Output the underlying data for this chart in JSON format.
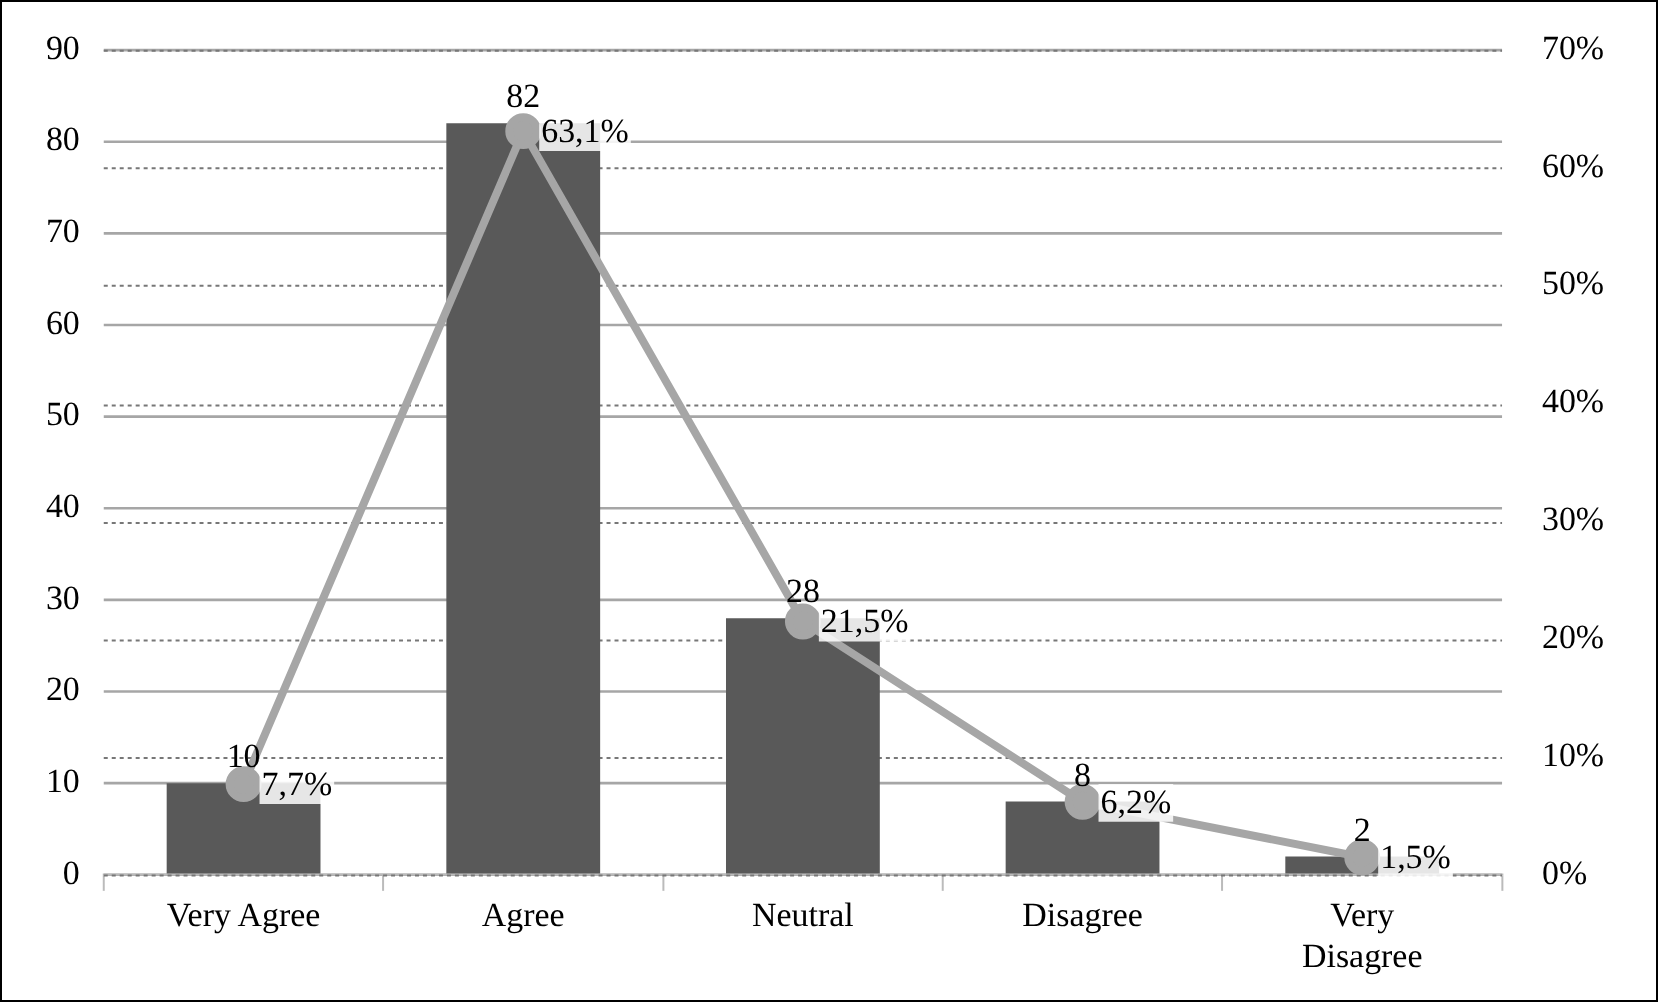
{
  "chart_data": {
    "type": "bar",
    "categories": [
      "Very Agree",
      "Agree",
      "Neutral",
      "Disagree",
      "Very Disagree"
    ],
    "series": [
      {
        "color": "#595959",
        "values": [
          10,
          82,
          28,
          8,
          2
        ],
        "value_labels": [
          "10",
          "82",
          "28",
          "8",
          "2"
        ]
      },
      {
        "type": "line",
        "axis": "y2",
        "color": "#a6a6a6",
        "values": [
          7.7,
          63.1,
          21.5,
          6.2,
          1.5
        ],
        "value_labels": [
          "7,7%",
          "63,1%",
          "21,5%",
          "6,2%",
          "1,5%"
        ]
      }
    ],
    "ylim": [
      0,
      90
    ],
    "yticks": [
      0,
      10,
      20,
      30,
      40,
      50,
      60,
      70,
      80,
      90
    ],
    "y2lim": [
      0,
      70
    ],
    "y2ticks": [
      {
        "value": 0,
        "label": "0%"
      },
      {
        "value": 10,
        "label": "10%"
      },
      {
        "value": 20,
        "label": "20%"
      },
      {
        "value": 30,
        "label": "30%"
      },
      {
        "value": 40,
        "label": "40%"
      },
      {
        "value": 50,
        "label": "50%"
      },
      {
        "value": 60,
        "label": "60%"
      },
      {
        "value": 70,
        "label": "70%"
      }
    ],
    "grid": "y",
    "legend": false,
    "marker": "circle",
    "line_style": "solid"
  }
}
